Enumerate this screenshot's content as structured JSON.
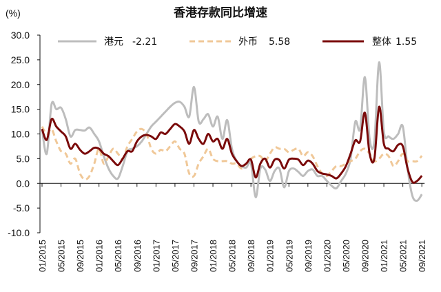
{
  "chart_data": {
    "type": "line",
    "title": "香港存款同比增速",
    "ylabel": "(%)",
    "xlabel": "",
    "ylim": [
      -10,
      30
    ],
    "yticks": [
      "30.0",
      "25.0",
      "20.0",
      "15.0",
      "10.0",
      "5.0",
      "0.0",
      "-5.0",
      "-10.0"
    ],
    "ytick_values": [
      30,
      25,
      20,
      15,
      10,
      5,
      0,
      -5,
      -10
    ],
    "xticks": [
      "01/2015",
      "05/2015",
      "09/2015",
      "01/2016",
      "05/2016",
      "09/2016",
      "01/2017",
      "05/2017",
      "09/2017",
      "01/2018",
      "05/2018",
      "09/2018",
      "01/2019",
      "05/2019",
      "09/2019",
      "01/2020",
      "05/2020",
      "09/2020",
      "01/2021",
      "05/2021",
      "09/2021"
    ],
    "x_start": "01/2015",
    "x_frequency": "monthly",
    "legend_placement": "top",
    "grid": false,
    "series": [
      {
        "name": "港元",
        "legend_value": "-2.21",
        "color": "#bdbdbd",
        "dash": false,
        "values": [
          11,
          6,
          16,
          15,
          15.3,
          13,
          9.5,
          10.8,
          10.8,
          10.7,
          11.3,
          10,
          8.5,
          5.5,
          3,
          1.5,
          1,
          3.5,
          6.5,
          7,
          7.5,
          8.5,
          10,
          11.5,
          12.5,
          13.5,
          14.5,
          15.5,
          16.3,
          16.5,
          15.5,
          13.5,
          19.5,
          12.5,
          13,
          14,
          11.5,
          13.5,
          9,
          12.8,
          7,
          4.5,
          3.5,
          3.2,
          4,
          -2.8,
          3,
          2.8,
          0.5,
          2.5,
          3,
          -0.8,
          2.5,
          3,
          2.3,
          1.5,
          2.5,
          2.8,
          1.5,
          1.5,
          0.5,
          -0.5,
          -1,
          0.5,
          2,
          5,
          12.5,
          11,
          21.5,
          9,
          8.5,
          24.5,
          10.5,
          9.5,
          9,
          10,
          11.5,
          3,
          -2.5,
          -3.5,
          -2.21
        ]
      },
      {
        "name": "外币",
        "legend_value": "5.58",
        "color": "#f0c898",
        "dash": true,
        "values": [
          11.5,
          10,
          11,
          8.5,
          6.5,
          6,
          4,
          5,
          2,
          0.8,
          1.5,
          4,
          7,
          4,
          5.5,
          7,
          6,
          5,
          7.5,
          9,
          10.5,
          11,
          10,
          7,
          6,
          6.8,
          6.5,
          7.5,
          8.5,
          7,
          6,
          2,
          1.5,
          4,
          5.5,
          7,
          5,
          4.5,
          4.5,
          4.5,
          4,
          4,
          3,
          4,
          5,
          5.5,
          5.5,
          4.5,
          6,
          7.3,
          7,
          7,
          6.3,
          6.8,
          7,
          5.5,
          6.3,
          5.5,
          3.5,
          2,
          1.5,
          2.5,
          3.5,
          3.5,
          4,
          4.5,
          5,
          6.5,
          7,
          6,
          4.5,
          5,
          6,
          5.5,
          3.5,
          4.5,
          6,
          4.5,
          4.5,
          4.5,
          5.58
        ]
      },
      {
        "name": "整体",
        "legend_value": "1.55",
        "color": "#7a0a0a",
        "dash": false,
        "values": [
          11,
          8.8,
          13,
          11.5,
          10.5,
          9.5,
          7,
          8,
          6.8,
          6,
          6.5,
          7.2,
          7,
          6,
          5.5,
          4.5,
          3.7,
          5,
          6.5,
          6.5,
          8.5,
          9.5,
          9.8,
          9.5,
          9,
          10.3,
          10,
          11,
          12,
          11.5,
          10.5,
          8,
          10.8,
          9,
          8,
          10,
          8.5,
          9,
          7,
          9,
          6,
          4.5,
          3.5,
          4,
          4.8,
          1.2,
          4,
          5,
          3.2,
          4.8,
          4.7,
          3,
          4.8,
          5,
          4.8,
          3.7,
          4.6,
          4,
          2.5,
          2,
          1.8,
          1.5,
          1,
          2,
          3.5,
          6,
          8.7,
          8.5,
          14.3,
          6,
          5,
          15.5,
          8,
          7,
          6.5,
          7.8,
          7.5,
          3,
          0.3,
          0.5,
          1.55
        ]
      }
    ]
  }
}
